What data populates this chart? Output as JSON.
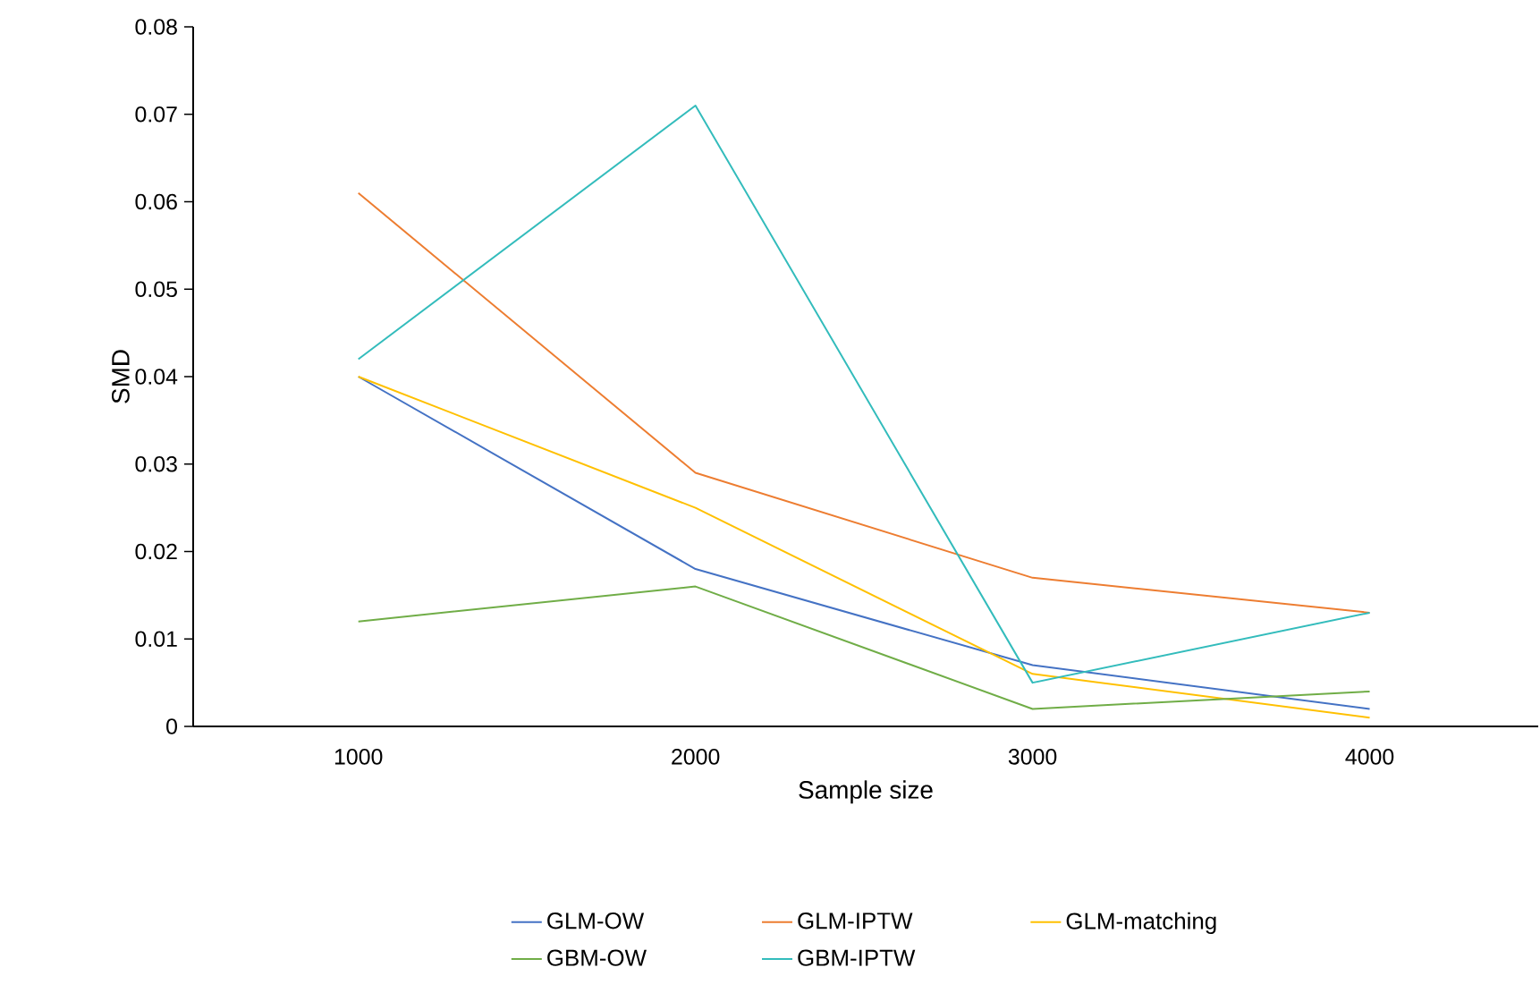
{
  "chart_data": {
    "type": "line",
    "xlabel": "Sample size",
    "ylabel": "SMD",
    "categories": [
      "1000",
      "2000",
      "3000",
      "4000"
    ],
    "series": [
      {
        "name": "GLM-OW",
        "color": "#4472c4",
        "values": [
          0.04,
          0.018,
          0.007,
          0.002
        ]
      },
      {
        "name": "GLM-IPTW",
        "color": "#ed7d31",
        "values": [
          0.061,
          0.029,
          0.017,
          0.013
        ]
      },
      {
        "name": "GLM-matching",
        "color": "#ffc000",
        "values": [
          0.04,
          0.025,
          0.006,
          0.001
        ]
      },
      {
        "name": "GBM-OW",
        "color": "#70ad47",
        "values": [
          0.012,
          0.016,
          0.002,
          0.004
        ]
      },
      {
        "name": "GBM-IPTW",
        "color": "#33bcbc",
        "values": [
          0.042,
          0.071,
          0.005,
          0.013
        ]
      }
    ],
    "ylim": [
      0,
      0.08
    ],
    "yticks": [
      0,
      0.01,
      0.02,
      0.03,
      0.04,
      0.05,
      0.06,
      0.07,
      0.08
    ],
    "legend": "bottom"
  }
}
